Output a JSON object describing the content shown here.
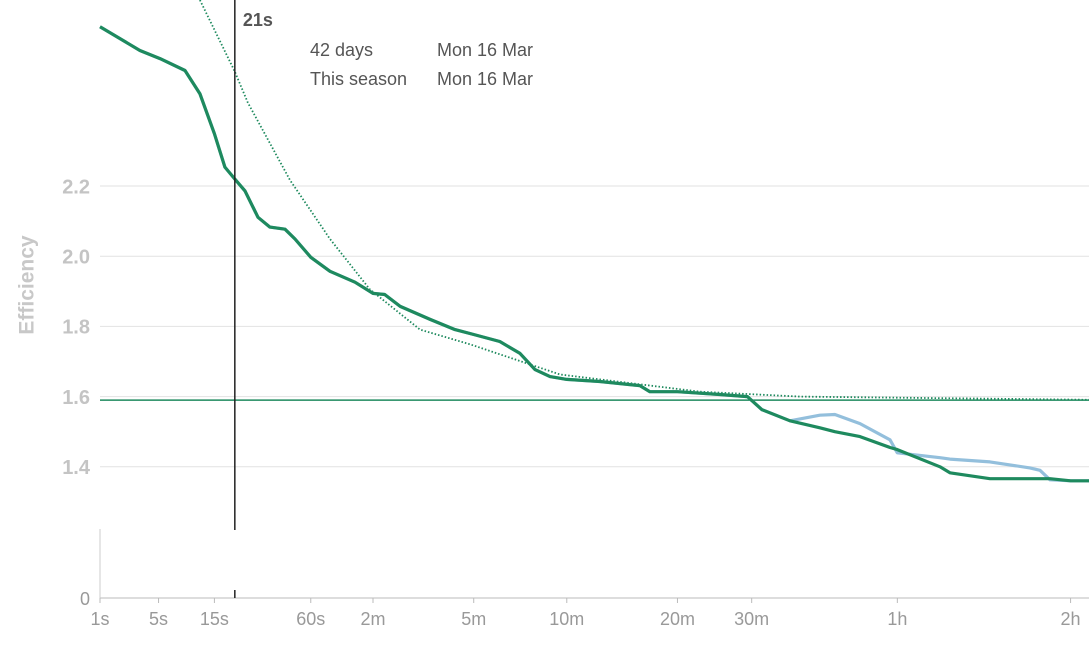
{
  "chart_data": {
    "type": "line",
    "y_label": "Efficiency",
    "xscale": "pow",
    "xexponent": 0.25,
    "xlim": [
      1,
      7700
    ],
    "xticks": [
      {
        "value": 1,
        "label": "1s"
      },
      {
        "value": 5,
        "label": "5s"
      },
      {
        "value": 15,
        "label": "15s"
      },
      {
        "value": 60,
        "label": "60s"
      },
      {
        "value": 120,
        "label": "2m"
      },
      {
        "value": 300,
        "label": "5m"
      },
      {
        "value": 600,
        "label": "10m"
      },
      {
        "value": 1200,
        "label": "20m"
      },
      {
        "value": 1800,
        "label": "30m"
      },
      {
        "value": 3600,
        "label": "1h"
      },
      {
        "value": 7200,
        "label": "2h"
      }
    ],
    "ylim": [
      0,
      2.73
    ],
    "ybreak": 1.2,
    "yticks": [
      0,
      1.4,
      1.6,
      1.8,
      {
        "value": 2,
        "label": "2.0"
      },
      2.2
    ],
    "grid": true,
    "x": [
      1,
      3.2,
      5.17,
      8.73,
      11.6,
      15,
      17.9,
      21,
      24.6,
      29.8,
      35.3,
      43.3,
      49.3,
      60,
      75.3,
      99.4,
      120,
      135,
      157,
      207,
      257,
      300,
      369,
      430,
      480,
      534,
      600,
      748,
      962,
      1021,
      1200,
      1521,
      1760,
      1897,
      2186,
      2528,
      2714,
      3047,
      3486,
      3600,
      4320,
      4501,
      5294,
      6184,
      6425,
      6670,
      7200,
      7700
    ],
    "series": [
      {
        "name": "42 days",
        "date": "Mon 16 Mar",
        "color": "#93bfdc",
        "values": [
          2.654,
          2.586,
          2.563,
          2.529,
          2.463,
          2.349,
          2.254,
          2.22,
          2.186,
          2.111,
          2.083,
          2.077,
          2.049,
          1.997,
          1.957,
          1.926,
          1.894,
          1.891,
          1.857,
          1.82,
          1.791,
          1.777,
          1.757,
          1.723,
          1.677,
          1.657,
          1.649,
          1.643,
          1.631,
          1.614,
          1.614,
          1.606,
          1.6,
          1.563,
          1.531,
          1.547,
          1.549,
          1.523,
          1.477,
          1.44,
          1.426,
          1.422,
          1.414,
          1.397,
          1.39,
          1.363,
          1.36,
          1.36
        ]
      },
      {
        "name": "This season",
        "date": "Mon 16 Mar",
        "color": "#1e8a5e",
        "values": [
          2.654,
          2.586,
          2.563,
          2.529,
          2.463,
          2.349,
          2.254,
          2.22,
          2.186,
          2.111,
          2.083,
          2.077,
          2.049,
          1.997,
          1.957,
          1.926,
          1.894,
          1.891,
          1.857,
          1.82,
          1.791,
          1.777,
          1.757,
          1.723,
          1.677,
          1.657,
          1.649,
          1.643,
          1.631,
          1.614,
          1.614,
          1.606,
          1.6,
          1.563,
          1.531,
          1.511,
          1.5,
          1.486,
          1.455,
          1.449,
          1.4,
          1.383,
          1.366,
          1.366,
          1.366,
          1.366,
          1.36,
          1.36
        ]
      }
    ],
    "fit": {
      "color": "#1e8a5e",
      "x": [
        11.6,
        21,
        25.7,
        46.2,
        75.3,
        116,
        189,
        291,
        573,
        1363,
        2296,
        7700
      ],
      "values": [
        2.73,
        2.526,
        2.437,
        2.217,
        2.049,
        1.906,
        1.791,
        1.749,
        1.663,
        1.614,
        1.6,
        1.591
      ]
    },
    "reference_line": {
      "value": 1.59,
      "color": "#1e8a5e"
    },
    "cursor": {
      "x": 21,
      "label": "21s"
    }
  }
}
